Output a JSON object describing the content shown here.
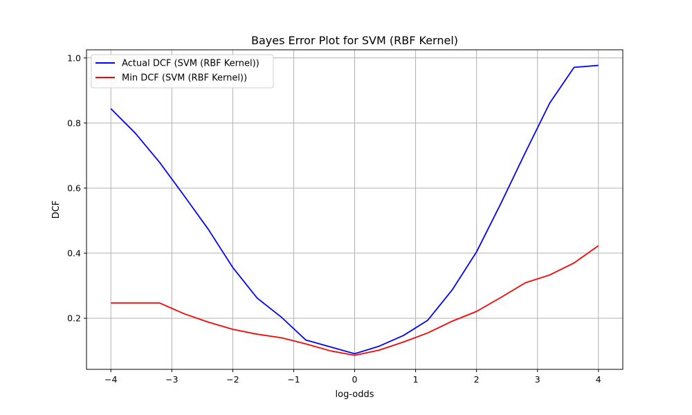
{
  "chart_data": {
    "type": "line",
    "title": "Bayes Error Plot for SVM (RBF Kernel)",
    "xlabel": "log-odds",
    "ylabel": "DCF",
    "xlim": [
      -4.4,
      4.4
    ],
    "ylim": [
      0.043,
      1.025
    ],
    "xticks": [
      -4,
      -3,
      -2,
      -1,
      0,
      1,
      2,
      3,
      4
    ],
    "xtick_labels": [
      "−4",
      "−3",
      "−2",
      "−1",
      "0",
      "1",
      "2",
      "3",
      "4"
    ],
    "yticks": [
      0.2,
      0.4,
      0.6,
      0.8,
      1.0
    ],
    "ytick_labels": [
      "0.2",
      "0.4",
      "0.6",
      "0.8",
      "1.0"
    ],
    "grid": true,
    "legend_position": "top-left",
    "x": [
      -4.0,
      -3.6,
      -3.2,
      -2.8,
      -2.4,
      -2.0,
      -1.6,
      -1.2,
      -0.8,
      -0.4,
      0.0,
      0.4,
      0.8,
      1.2,
      1.6,
      2.0,
      2.4,
      2.8,
      3.2,
      3.6,
      4.0
    ],
    "series": [
      {
        "name": "Actual DCF (SVM (RBF Kernel))",
        "color": "#0000ff",
        "values": [
          0.844,
          0.769,
          0.679,
          0.577,
          0.473,
          0.356,
          0.262,
          0.203,
          0.133,
          0.112,
          0.091,
          0.114,
          0.147,
          0.194,
          0.287,
          0.404,
          0.553,
          0.709,
          0.861,
          0.971,
          0.977
        ]
      },
      {
        "name": "Min DCF (SVM (RBF Kernel))",
        "color": "#ff0000",
        "values": [
          0.247,
          0.247,
          0.247,
          0.214,
          0.188,
          0.166,
          0.151,
          0.14,
          0.121,
          0.1,
          0.086,
          0.102,
          0.127,
          0.155,
          0.191,
          0.221,
          0.264,
          0.309,
          0.333,
          0.37,
          0.423
        ]
      }
    ]
  }
}
